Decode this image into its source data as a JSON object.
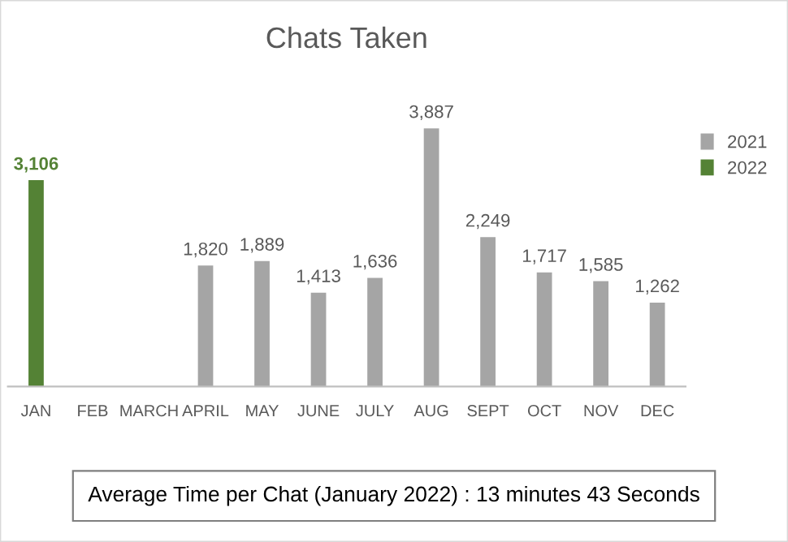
{
  "chart_data": {
    "type": "bar",
    "title": "Chats Taken",
    "categories": [
      "JAN",
      "FEB",
      "MARCH",
      "APRIL",
      "MAY",
      "JUNE",
      "JULY",
      "AUG",
      "SEPT",
      "OCT",
      "NOV",
      "DEC"
    ],
    "series": [
      {
        "name": "2021",
        "color": "#a5a5a5",
        "values": [
          null,
          null,
          null,
          1820,
          1889,
          1413,
          1636,
          3887,
          2249,
          1717,
          1585,
          1262
        ],
        "value_labels": [
          null,
          null,
          null,
          "1,820",
          "1,889",
          "1,413",
          "1,636",
          "3,887",
          "2,249",
          "1,717",
          "1,585",
          "1,262"
        ]
      },
      {
        "name": "2022",
        "color": "#548235",
        "values": [
          3106,
          null,
          null,
          null,
          null,
          null,
          null,
          null,
          null,
          null,
          null,
          null
        ],
        "value_labels": [
          "3,106",
          null,
          null,
          null,
          null,
          null,
          null,
          null,
          null,
          null,
          null,
          null
        ]
      }
    ],
    "legend": "right",
    "grid": false,
    "annotations": [
      "Average Time per Chat (January 2022) : 13 minutes 43 Seconds"
    ]
  }
}
